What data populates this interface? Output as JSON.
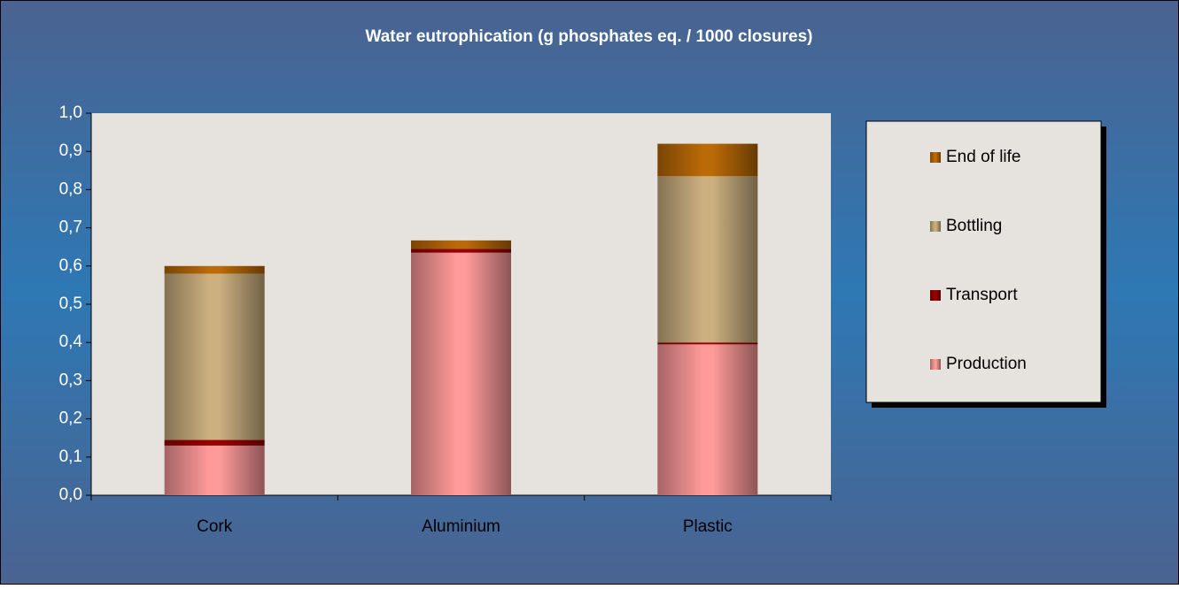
{
  "chart_data": {
    "type": "stacked_bar",
    "title": "Water eutrophication (g phosphates eq. / 1000 closures)",
    "categories": [
      "Cork",
      "Aluminium",
      "Plastic"
    ],
    "series": [
      {
        "name": "Production",
        "color": "#ff9a9a",
        "values": [
          0.13,
          0.635,
          0.395
        ]
      },
      {
        "name": "Transport",
        "color": "#990000",
        "values": [
          0.015,
          0.01,
          0.005
        ]
      },
      {
        "name": "Bottling",
        "color": "#ccb080",
        "values": [
          0.435,
          0,
          0.435
        ]
      },
      {
        "name": "End of life",
        "color": "#bb6a08",
        "values": [
          0.02,
          0.022,
          0.085
        ]
      }
    ],
    "ylim": [
      0,
      1
    ],
    "yticks": [
      {
        "value": 0,
        "label": "0,0"
      },
      {
        "value": 0.1,
        "label": "0,1"
      },
      {
        "value": 0.2,
        "label": "0,2"
      },
      {
        "value": 0.3,
        "label": "0,3"
      },
      {
        "value": 0.4,
        "label": "0,4"
      },
      {
        "value": 0.5,
        "label": "0,5"
      },
      {
        "value": 0.6,
        "label": "0,6"
      },
      {
        "value": 0.7,
        "label": "0,7"
      },
      {
        "value": 0.8,
        "label": "0,8"
      },
      {
        "value": 0.9,
        "label": "0,9"
      },
      {
        "value": 1,
        "label": "1,0"
      }
    ],
    "grid": false,
    "legend": "right"
  }
}
